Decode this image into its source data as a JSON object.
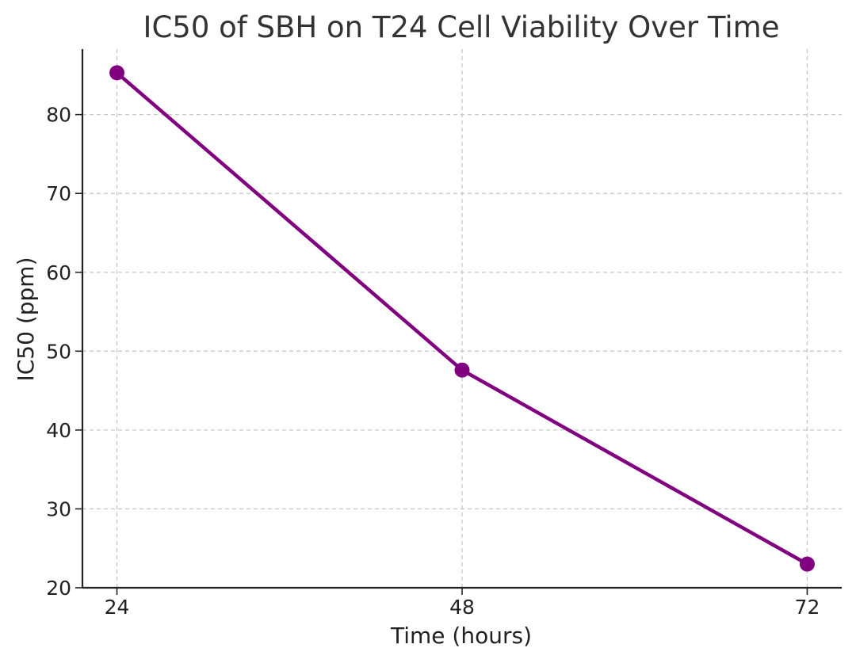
{
  "chart_data": {
    "type": "line",
    "title": "IC50 of SBH on T24 Cell Viability Over Time",
    "xlabel": "Time (hours)",
    "ylabel": "IC50 (ppm)",
    "x": [
      24,
      48,
      72
    ],
    "x_tick_labels": [
      "24",
      "48",
      "72"
    ],
    "series": [
      {
        "values": [
          85.3,
          47.6,
          23.0
        ],
        "color": "#800080",
        "marker": "circle"
      }
    ],
    "ylim": [
      20,
      88.3
    ],
    "xlim": [
      21.6,
      74.4
    ],
    "y_ticks": [
      20,
      30,
      40,
      50,
      60,
      70,
      80
    ],
    "y_tick_labels": [
      "20",
      "30",
      "40",
      "50",
      "60",
      "70",
      "80"
    ],
    "grid": true,
    "legend": "none"
  }
}
